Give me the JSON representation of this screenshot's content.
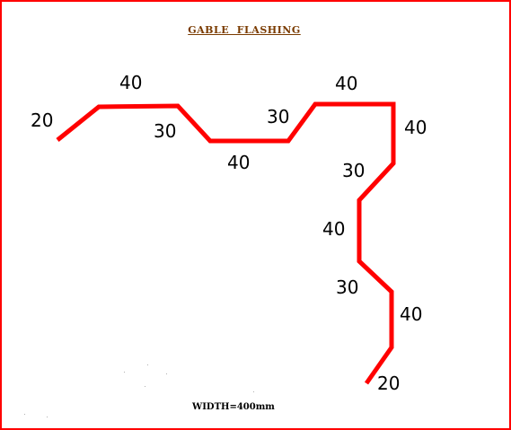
{
  "title": "GABLE  FLASHING",
  "width_note": "WIDTH=400mm",
  "profile": {
    "stroke_color": "#ff0000",
    "frame_color": "#ff0000",
    "title_color": "#7a3b00",
    "segment_labels": [
      "20",
      "40",
      "30",
      "40",
      "30",
      "40",
      "40",
      "30",
      "40",
      "30",
      "40",
      "20"
    ]
  }
}
